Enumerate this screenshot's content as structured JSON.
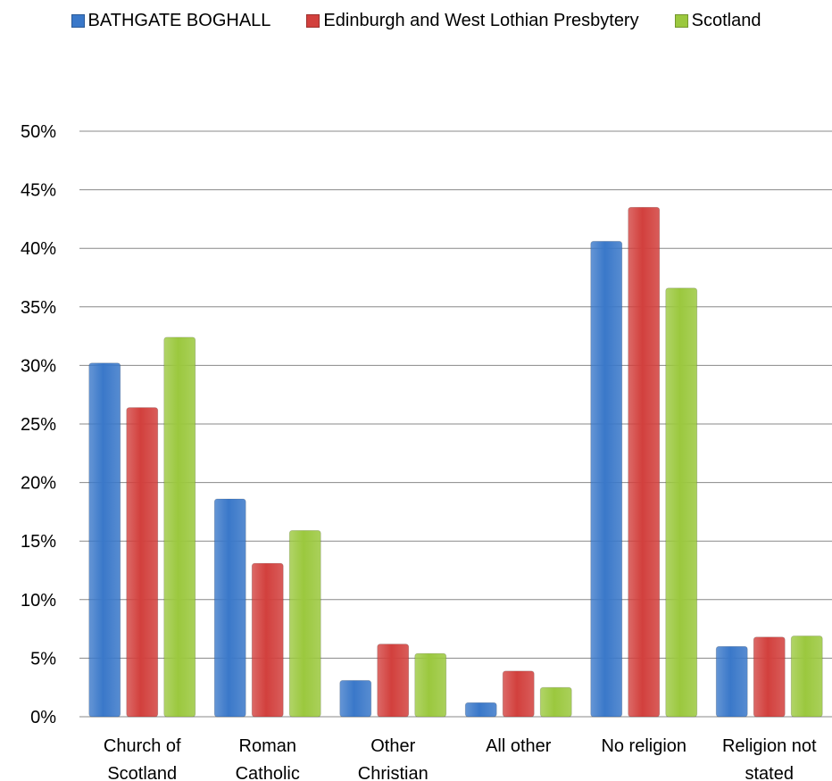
{
  "chart_data": {
    "type": "bar",
    "categories": [
      [
        "Church of",
        "Scotland"
      ],
      [
        "Roman",
        "Catholic"
      ],
      [
        "Other",
        "Christian"
      ],
      [
        "All other"
      ],
      [
        "No religion"
      ],
      [
        "Religion not",
        "stated"
      ]
    ],
    "series": [
      {
        "name": "BATHGATE BOGHALL",
        "color": "#3a78c9",
        "values": [
          30.2,
          18.6,
          3.1,
          1.2,
          40.6,
          6.0
        ]
      },
      {
        "name": "Edinburgh and West Lothian Presbytery",
        "color": "#d2403d",
        "values": [
          26.4,
          13.1,
          6.2,
          3.9,
          43.5,
          6.8
        ]
      },
      {
        "name": "Scotland",
        "color": "#9bc83e",
        "values": [
          32.4,
          15.9,
          5.4,
          2.5,
          36.6,
          6.9
        ]
      }
    ],
    "y_ticks": [
      "0%",
      "5%",
      "10%",
      "15%",
      "20%",
      "25%",
      "30%",
      "35%",
      "40%",
      "45%",
      "50%"
    ],
    "ylim": [
      0,
      50
    ],
    "grid": true,
    "legend_position": "top"
  }
}
